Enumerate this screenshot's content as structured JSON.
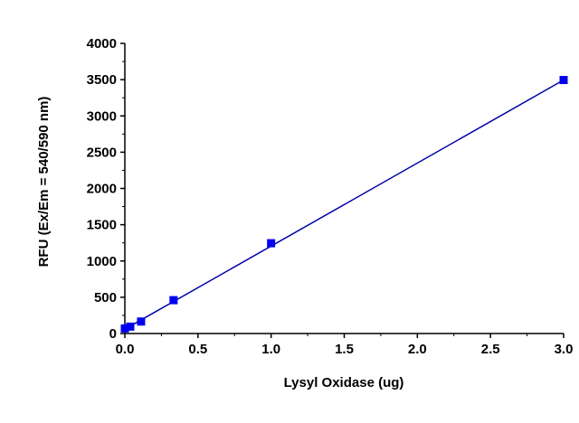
{
  "chart_data": {
    "type": "scatter",
    "title": "",
    "xlabel": "Lysyl Oxidase (ug)",
    "ylabel": "RFU (Ex/Em = 540/590 nm)",
    "xlim": [
      0,
      3.0
    ],
    "ylim": [
      0,
      4000
    ],
    "x_ticks": [
      "0.0",
      "0.5",
      "1.0",
      "1.5",
      "2.0",
      "2.5",
      "3.0"
    ],
    "y_ticks": [
      "0",
      "500",
      "1000",
      "1500",
      "2000",
      "2500",
      "3000",
      "3500",
      "4000"
    ],
    "grid": false,
    "legend": "none",
    "series": [
      {
        "marker": "square",
        "color": "#0000ee",
        "x": [
          0.0,
          0.037,
          0.111,
          0.333,
          1.0,
          3.0
        ],
        "y": [
          70,
          95,
          165,
          460,
          1245,
          3495
        ]
      }
    ],
    "fit_line": {
      "color": "#0000aa",
      "x": [
        0.0,
        3.0
      ],
      "y": [
        60,
        3495
      ]
    }
  }
}
